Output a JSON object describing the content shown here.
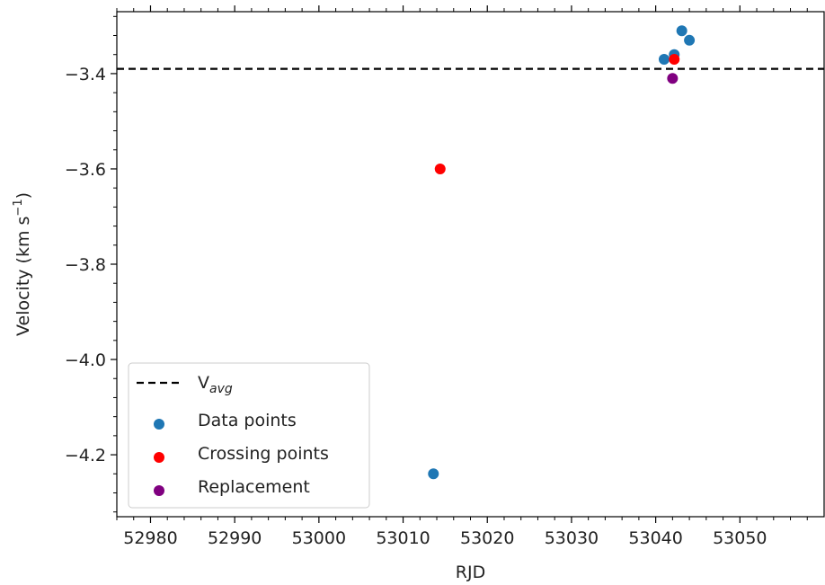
{
  "chart_data": {
    "type": "scatter",
    "title": "",
    "xlabel": "RJD",
    "ylabel": "Velocity (km s",
    "ylabel_superscript": "−1",
    "ylabel_close": ")",
    "xlim": [
      52976,
      53060
    ],
    "ylim": [
      -4.33,
      -3.27
    ],
    "x_ticks": [
      52980,
      52990,
      53000,
      53010,
      53020,
      53030,
      53040,
      53050
    ],
    "x_tick_labels": [
      "52980",
      "52990",
      "53000",
      "53010",
      "53020",
      "53030",
      "53040",
      "53050"
    ],
    "y_ticks": [
      -4.2,
      -4.0,
      -3.8,
      -3.6,
      -3.4
    ],
    "y_tick_labels": [
      "−4.2",
      "−4.0",
      "−3.8",
      "−3.6",
      "−3.4"
    ],
    "grid": false,
    "legend_position": "lower-left",
    "hline": {
      "name": "V",
      "name_subscript": "avg",
      "y": -3.39,
      "color": "#000000",
      "style": "dashed"
    },
    "series": [
      {
        "name": "Data points",
        "color": "#1f77b4",
        "points": [
          {
            "x": 53013.6,
            "y": -4.24
          },
          {
            "x": 53041.0,
            "y": -3.37
          },
          {
            "x": 53042.2,
            "y": -3.36
          },
          {
            "x": 53043.1,
            "y": -3.31
          },
          {
            "x": 53044.0,
            "y": -3.33
          }
        ]
      },
      {
        "name": "Crossing points",
        "color": "#ff0000",
        "points": [
          {
            "x": 53014.4,
            "y": -3.6
          },
          {
            "x": 53042.2,
            "y": -3.37
          }
        ]
      },
      {
        "name": "Replacement",
        "color": "#800080",
        "points": [
          {
            "x": 53042.0,
            "y": -3.41
          }
        ]
      }
    ]
  }
}
